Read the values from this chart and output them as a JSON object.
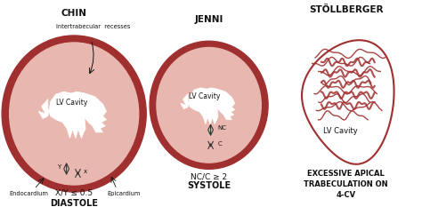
{
  "bg_color": "#ffffff",
  "dark_red": "#a03030",
  "pink_fill": "#d4938a",
  "pink_light": "#e8b8b0",
  "white": "#ffffff",
  "text_color": "#111111",
  "titles": [
    "CHIN",
    "JENNI",
    "STÖLLBERGER"
  ],
  "chin_subtitle1": "X/Y ≤ 0.5",
  "chin_subtitle2": "DIASTOLE",
  "jenni_subtitle1": "NC/C ≥ 2",
  "jenni_subtitle2": "SYSTOLE",
  "stoll_subtitle1": "EXCESSIVE APICAL",
  "stoll_subtitle2": "TRABECULATION ON",
  "stoll_subtitle3": "4-CV"
}
